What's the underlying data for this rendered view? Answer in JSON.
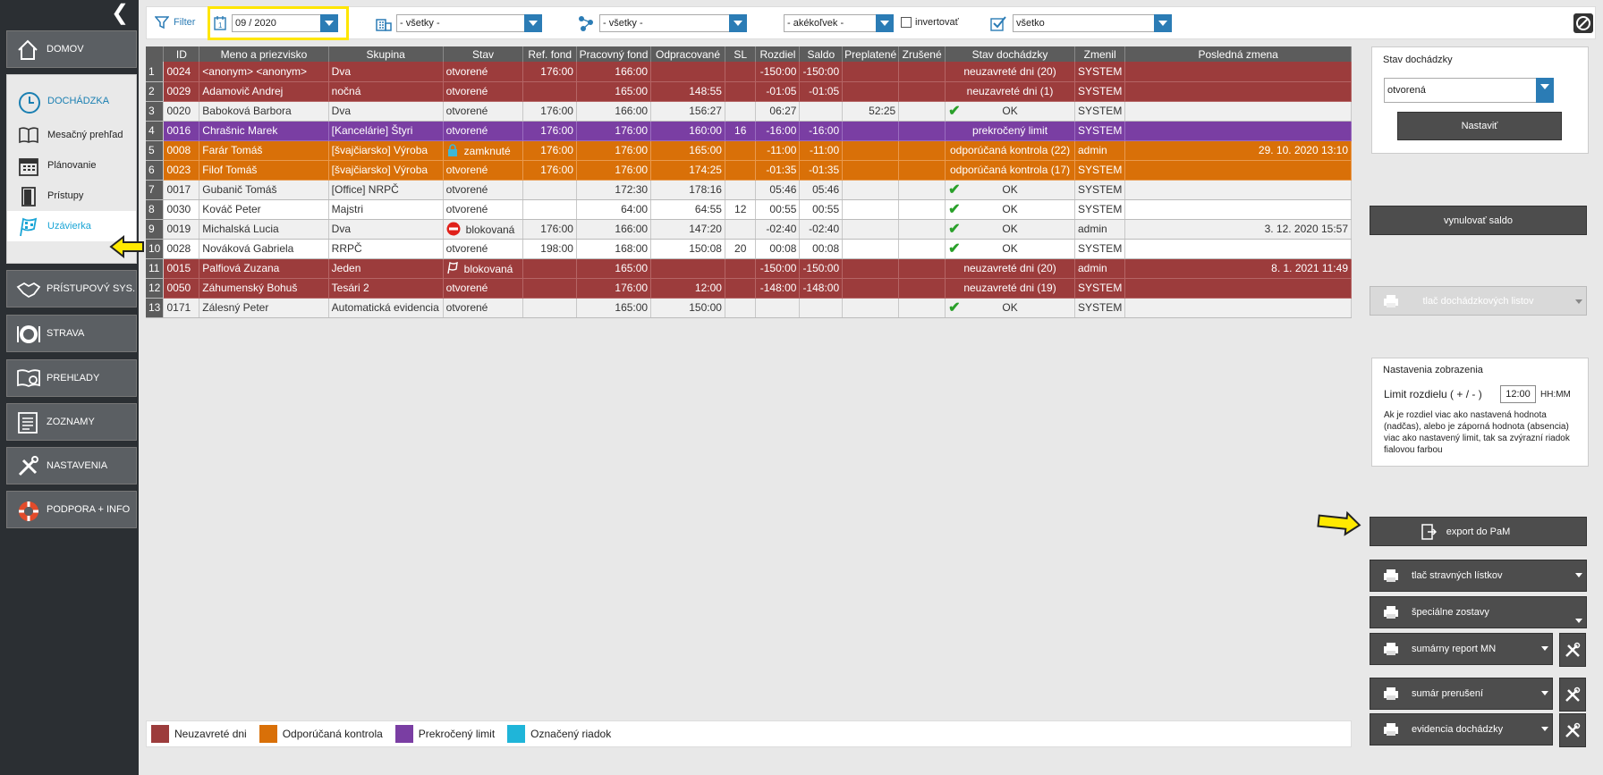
{
  "sidebar": {
    "domov": "DOMOV",
    "dochadzka": "DOCHÁDZKA",
    "sub": [
      "Mesačný prehľad",
      "Plánovanie",
      "Prístupy",
      "Uzávierka"
    ],
    "pristupovy": "PRÍSTUPOVÝ SYS.",
    "strava": "STRAVA",
    "prehlady": "PREHĽADY",
    "zoznamy": "ZOZNAMY",
    "nastavenia": "NASTAVENIA",
    "podpora": "PODPORA + INFO"
  },
  "filter": {
    "label": "Filter",
    "period": "09 / 2020",
    "building": "- všetky -",
    "group": "- všetky -",
    "any": "- akékoľvek -",
    "invert": "invertovať",
    "status": "všetko"
  },
  "table": {
    "headers": [
      "ID",
      "Meno a priezvisko",
      "Skupina",
      "Stav",
      "Ref. fond",
      "Pracovný fond",
      "Odpracované",
      "SL",
      "Rozdiel",
      "Saldo",
      "Preplatené",
      "Zrušené",
      "Stav dochádzky",
      "Zmenil",
      "Posledná zmena"
    ],
    "rows": [
      {
        "n": "1",
        "id": "0024",
        "name": "<anonym> <anonym>",
        "group": "Dva",
        "state": "otvorené",
        "ref": "176:00",
        "work": "166:00",
        "done": "",
        "sl": "",
        "diff": "-150:00",
        "saldo": "-150:00",
        "paid": "",
        "cancel": "",
        "att": "neuzavreté dni (20)",
        "by": "SYSTEM",
        "last": ""
      },
      {
        "n": "2",
        "id": "0029",
        "name": "Adamovič Andrej",
        "group": "nočná",
        "state": "otvorené",
        "ref": "",
        "work": "165:00",
        "done": "148:55",
        "sl": "",
        "diff": "-01:05",
        "saldo": "-01:05",
        "paid": "",
        "cancel": "",
        "att": "neuzavreté dni (1)",
        "by": "SYSTEM",
        "last": ""
      },
      {
        "n": "3",
        "id": "0020",
        "name": "Baboková Barbora",
        "group": "Dva",
        "state": "otvorené",
        "ref": "176:00",
        "work": "166:00",
        "done": "156:27",
        "sl": "",
        "diff": "06:27",
        "saldo": "",
        "paid": "52:25",
        "cancel": "",
        "att": "OK",
        "by": "SYSTEM",
        "last": ""
      },
      {
        "n": "4",
        "id": "0016",
        "name": "Chrašnic Marek",
        "group": "[Kancelárie] Štyri",
        "state": "otvorené",
        "ref": "176:00",
        "work": "176:00",
        "done": "160:00",
        "sl": "16",
        "diff": "-16:00",
        "saldo": "-16:00",
        "paid": "",
        "cancel": "",
        "att": "prekročený limit",
        "by": "SYSTEM",
        "last": ""
      },
      {
        "n": "5",
        "id": "0008",
        "name": "Farár Tomáš",
        "group": "[švajčiarsko] Výroba",
        "state": "zamknuté",
        "ref": "176:00",
        "work": "176:00",
        "done": "165:00",
        "sl": "",
        "diff": "-11:00",
        "saldo": "-11:00",
        "paid": "",
        "cancel": "",
        "att": "odporúčaná kontrola (22)",
        "by": "admin",
        "last": "29. 10. 2020 13:10"
      },
      {
        "n": "6",
        "id": "0023",
        "name": "Filof Tomáš",
        "group": "[švajčiarsko] Výroba",
        "state": "otvorené",
        "ref": "176:00",
        "work": "176:00",
        "done": "174:25",
        "sl": "",
        "diff": "-01:35",
        "saldo": "-01:35",
        "paid": "",
        "cancel": "",
        "att": "odporúčaná kontrola (17)",
        "by": "SYSTEM",
        "last": ""
      },
      {
        "n": "7",
        "id": "0017",
        "name": "Gubanič Tomáš",
        "group": "[Office] NRPČ",
        "state": "otvorené",
        "ref": "",
        "work": "172:30",
        "done": "178:16",
        "sl": "",
        "diff": "05:46",
        "saldo": "05:46",
        "paid": "",
        "cancel": "",
        "att": "OK",
        "by": "SYSTEM",
        "last": ""
      },
      {
        "n": "8",
        "id": "0030",
        "name": "Kováč Peter",
        "group": "Majstri",
        "state": "otvorené",
        "ref": "",
        "work": "64:00",
        "done": "64:55",
        "sl": "12",
        "diff": "00:55",
        "saldo": "00:55",
        "paid": "",
        "cancel": "",
        "att": "OK",
        "by": "SYSTEM",
        "last": ""
      },
      {
        "n": "9",
        "id": "0019",
        "name": "Michalská Lucia",
        "group": "Dva",
        "state": "blokovaná",
        "ref": "176:00",
        "work": "166:00",
        "done": "147:20",
        "sl": "",
        "diff": "-02:40",
        "saldo": "-02:40",
        "paid": "",
        "cancel": "",
        "att": "OK",
        "by": "admin",
        "last": "3. 12. 2020 15:57"
      },
      {
        "n": "10",
        "id": "0028",
        "name": "Nováková Gabriela",
        "group": "RRPČ",
        "state": "otvorené",
        "ref": "198:00",
        "work": "168:00",
        "done": "150:08",
        "sl": "20",
        "diff": "00:08",
        "saldo": "00:08",
        "paid": "",
        "cancel": "",
        "att": "OK",
        "by": "SYSTEM",
        "last": ""
      },
      {
        "n": "11",
        "id": "0015",
        "name": "Palfiová Zuzana",
        "group": "Jeden",
        "state": "blokovaná",
        "ref": "",
        "work": "165:00",
        "done": "",
        "sl": "",
        "diff": "-150:00",
        "saldo": "-150:00",
        "paid": "",
        "cancel": "",
        "att": "neuzavreté dni (20)",
        "by": "admin",
        "last": "8. 1. 2021 11:49"
      },
      {
        "n": "12",
        "id": "0050",
        "name": "Záhumenský Bohuš",
        "group": "Tesári 2",
        "state": "otvorené",
        "ref": "",
        "work": "176:00",
        "done": "12:00",
        "sl": "",
        "diff": "-148:00",
        "saldo": "-148:00",
        "paid": "",
        "cancel": "",
        "att": "neuzavreté dni (19)",
        "by": "SYSTEM",
        "last": ""
      },
      {
        "n": "13",
        "id": "0171",
        "name": "Zálesný Peter",
        "group": "Automatická evidencia",
        "state": "otvorené",
        "ref": "",
        "work": "165:00",
        "done": "150:00",
        "sl": "",
        "diff": "",
        "saldo": "",
        "paid": "",
        "cancel": "",
        "att": "OK",
        "by": "SYSTEM",
        "last": ""
      }
    ]
  },
  "legend": [
    "Neuzavreté dni",
    "Odporúčaná kontrola",
    "Prekročený limit",
    "Označený riadok"
  ],
  "right": {
    "stav_title": "Stav dochádzky",
    "stav_value": "otvorená",
    "nastavit": "Nastaviť",
    "vynulovat": "vynulovať saldo",
    "tlac_listov": "tlač dochádzkových listov",
    "nast_title": "Nastavenia zobrazenia",
    "limit_label": "Limit rozdielu ( + / - )",
    "limit_value": "12:00",
    "limit_unit": "HH:MM",
    "limit_help": "Ak je rozdiel viac ako nastavená hodnota (nadčas), alebo je záporná hodnota (absencia) viac ako nastavený limit, tak sa zvýrazní riadok fialovou farbou",
    "export": "export do PaM",
    "stravne": "tlač stravných lístkov",
    "specialne": "špeciálne zostavy",
    "sumarny": "sumárny report MN",
    "sumar_prer": "sumár prerušení",
    "evidencia": "evidencia dochádzky"
  }
}
